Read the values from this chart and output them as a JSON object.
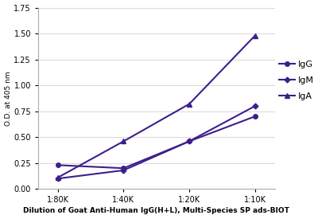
{
  "x_labels": [
    "1:80K",
    "1:40K",
    "1:20K",
    "1:10K"
  ],
  "x_values": [
    1,
    2,
    3,
    4
  ],
  "series": [
    {
      "name": "IgG",
      "values": [
        0.23,
        0.2,
        0.46,
        0.7
      ],
      "color": "#3d1f8c",
      "marker": "o",
      "linewidth": 1.5,
      "markersize": 4
    },
    {
      "name": "IgM",
      "values": [
        0.1,
        0.18,
        0.46,
        0.8
      ],
      "color": "#3d1f8c",
      "marker": "D",
      "linewidth": 1.5,
      "markersize": 3.5
    },
    {
      "name": "IgA",
      "values": [
        0.11,
        0.46,
        0.82,
        1.48
      ],
      "color": "#3d1f8c",
      "marker": "^",
      "linewidth": 1.5,
      "markersize": 4.5
    }
  ],
  "ylabel": "O.D. at 405 nm",
  "xlabel": "Dilution of Goat Anti-Human IgG(H+L), Multi-Species SP ads-BIOT",
  "ylim": [
    0.0,
    1.75
  ],
  "yticks": [
    0.0,
    0.25,
    0.5,
    0.75,
    1.0,
    1.25,
    1.5,
    1.75
  ],
  "background_color": "#ffffff",
  "plot_bg_color": "#ffffff",
  "grid_color": "#d8d8d8",
  "axis_label_fontsize": 6.5,
  "tick_fontsize": 7,
  "legend_fontsize": 8
}
